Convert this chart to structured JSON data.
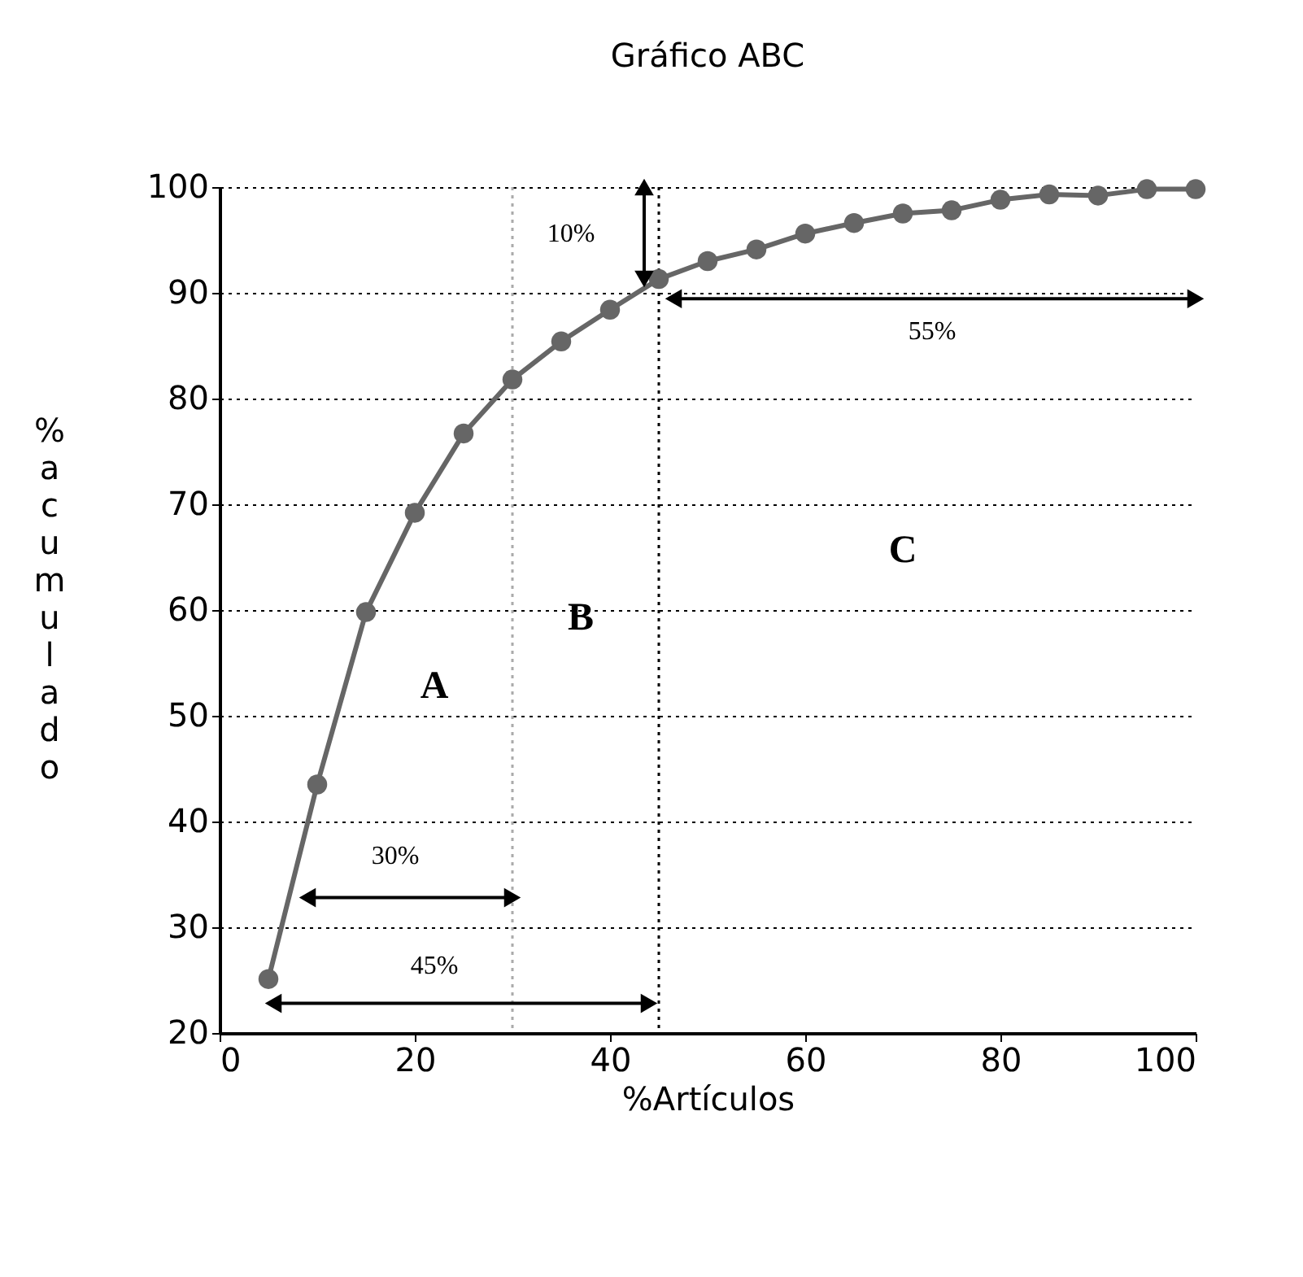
{
  "chart_data": {
    "type": "line",
    "title": "Gráfico ABC",
    "xlabel": "%Artículos",
    "ylabel": "%acumulado",
    "x": [
      5,
      10,
      15,
      20,
      25,
      30,
      35,
      40,
      45,
      50,
      55,
      60,
      65,
      70,
      75,
      80,
      85,
      90,
      95,
      100
    ],
    "series": [
      {
        "color": "#666666",
        "values": [
          25.1,
          43.5,
          59.8,
          69.2,
          76.7,
          81.8,
          85.4,
          88.4,
          91.3,
          93.0,
          94.1,
          95.6,
          96.6,
          97.5,
          97.8,
          98.8,
          99.3,
          99.2,
          99.8,
          99.8
        ]
      }
    ],
    "xlim": [
      0,
      100
    ],
    "xticks": [
      0,
      20,
      40,
      60,
      80,
      100
    ],
    "ylim": [
      20,
      100
    ],
    "yticks": [
      20,
      30,
      40,
      50,
      60,
      70,
      80,
      90,
      100
    ],
    "grid": "y",
    "marker": "circle",
    "line_style": "solid",
    "ref_lines": [
      {
        "axis": "x",
        "value": 30,
        "color": "#aaaaaa",
        "line_style": "dotted"
      },
      {
        "axis": "x",
        "value": 45,
        "color": "#000000",
        "line_style": "dotted"
      }
    ],
    "annotations": [
      "10%",
      "55%",
      "30%",
      "45%",
      "A",
      "B",
      "C"
    ]
  }
}
